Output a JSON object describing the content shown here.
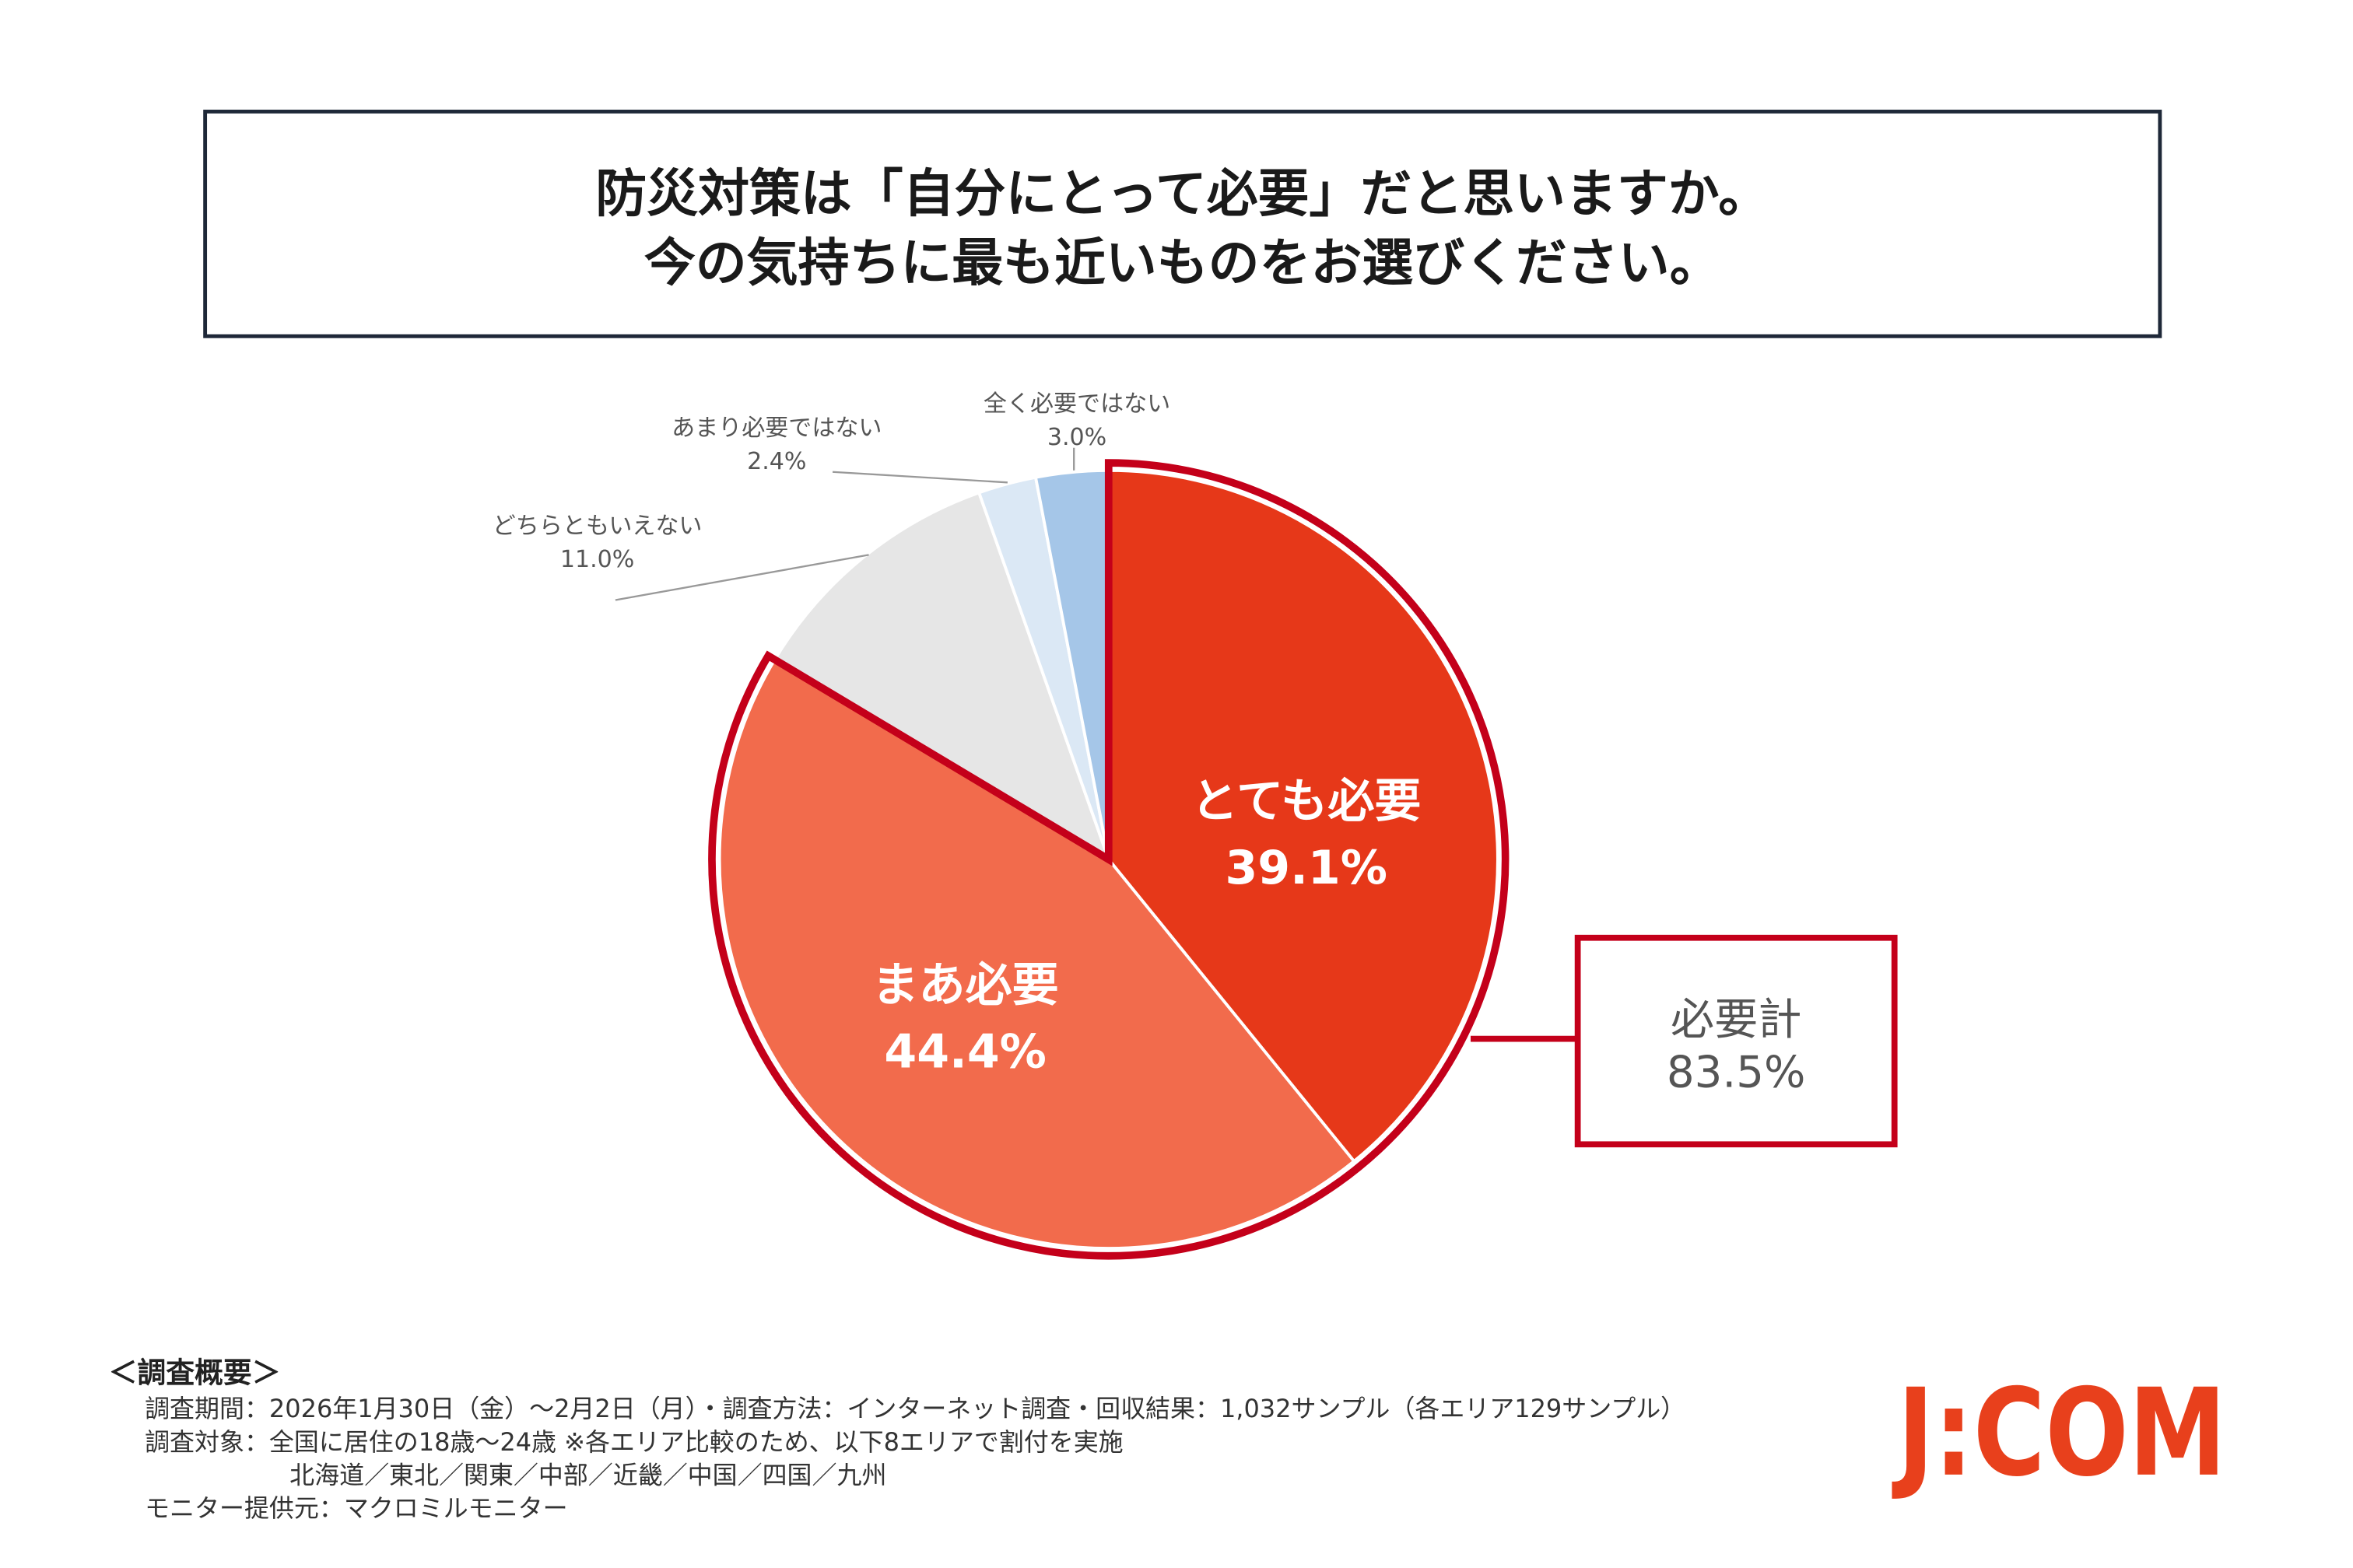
{
  "title": {
    "line1": "防災対策は「自分にとって必要」だと思いますか。",
    "line2": "今の気持ちに最も近いものをお選びください。"
  },
  "chart_data": {
    "type": "pie",
    "title": "防災対策は「自分にとって必要」だと思いますか。今の気持ちに最も近いものをお選びください。",
    "start": "top",
    "direction": "clockwise",
    "categories": [
      "とても必要",
      "まあ必要",
      "どちらともいえない",
      "あまり必要ではない",
      "全く必要ではない"
    ],
    "values": [
      39.1,
      44.4,
      11.0,
      2.4,
      3.0
    ],
    "value_labels": [
      "39.1%",
      "44.4%",
      "11.0%",
      "2.4%",
      "3.0%"
    ],
    "colors": [
      "#e63819",
      "#f26b4c",
      "#e6e6e6",
      "#dbe8f5",
      "#a5c6e8"
    ],
    "highlight": {
      "label": "必要計",
      "value": 83.5,
      "value_label": "83.5%",
      "color": "#c4001a"
    }
  },
  "footer": {
    "heading": "＜調査概要＞",
    "lines": [
      "調査期間：2026年1月30日（金）～2月2日（月）・調査方法：インターネット調査・回収結果：1,032サンプル（各エリア129サンプル）",
      "調査対象：全国に居住の18歳～24歳 ※各エリア比較のため、以下8エリアで割付を実施",
      "北海道／東北／関東／中部／近畿／中国／四国／九州",
      "モニター提供元：マクロミルモニター"
    ]
  },
  "logo": "J:COM"
}
